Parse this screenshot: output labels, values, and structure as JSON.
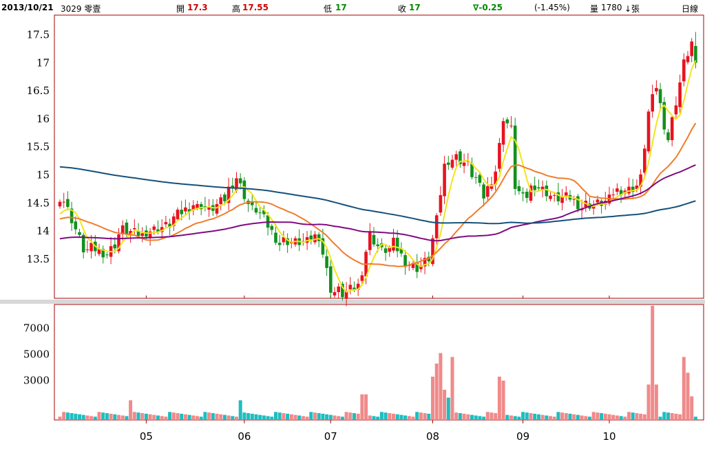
{
  "header": {
    "date": "2013/10/21",
    "stock": "3029 零壹",
    "open_label": "開",
    "open_value": "17.3",
    "high_label": "高",
    "high_value": "17.55",
    "low_label": "低",
    "low_value": "17",
    "close_label": "收",
    "close_value": "17",
    "change": "∇-0.25",
    "change_pct": "(-1.45%)",
    "volume_label": "量",
    "volume_value": "1780",
    "volume_unit": "↓張",
    "period": "日線"
  },
  "colors": {
    "up": "#e8131f",
    "down": "#11911d",
    "ma5": "#f2e41a",
    "ma20": "#f07c2a",
    "ma60": "#800a80",
    "ma120": "#14507a",
    "vol_up": "#f08a8a",
    "vol_down": "#1fbdc0",
    "frame": "#a00000"
  },
  "chart_data": [
    {
      "type": "candlestick",
      "title": "",
      "yticks": [
        13.5,
        14,
        14.5,
        15,
        15.5,
        16,
        16.5,
        17,
        17.5
      ],
      "ytick_labels": [
        "13.5",
        "14",
        "14.5",
        "15",
        "15.5",
        "16",
        "16.5",
        "17",
        "17.5"
      ],
      "ylim": [
        12.8,
        17.85
      ],
      "xticks": [
        "05",
        "06",
        "07",
        "08",
        "09",
        "10"
      ],
      "xtick_index": [
        22,
        47,
        69,
        95,
        118,
        140
      ],
      "candles": [],
      "series": [
        {
          "name": "MA5",
          "values": []
        },
        {
          "name": "MA20",
          "values": []
        },
        {
          "name": "MA60",
          "values": []
        },
        {
          "name": "MA120",
          "values": []
        }
      ]
    },
    {
      "type": "bar",
      "title": "",
      "yticks": [
        3000,
        5000,
        7000
      ],
      "ytick_labels": [
        "3000",
        "5000",
        "7000"
      ],
      "ylim": [
        0,
        8800
      ],
      "values": []
    }
  ]
}
